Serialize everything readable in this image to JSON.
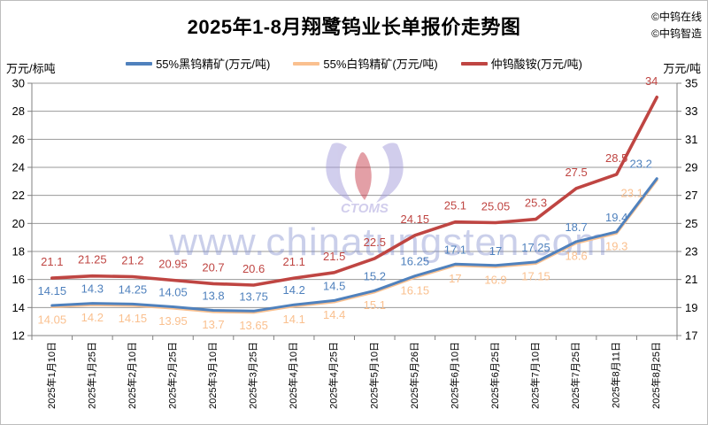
{
  "title": "2025年1-8月翔鹭钨业长单报价走势图",
  "credits": [
    "©中钨在线",
    "©中钨智造"
  ],
  "watermark": {
    "text": "www.chinatungsten.com",
    "logo_text": "CTOMS"
  },
  "chart_data": {
    "type": "line",
    "title": "2025年1-8月翔鹭钨业长单报价走势图",
    "categories": [
      "2025年1月10日",
      "2025年1月25日",
      "2025年2月10日",
      "2025年2月25日",
      "2025年3月10日",
      "2025年3月25日",
      "2025年4月10日",
      "2025年4月25日",
      "2025年5月10日",
      "2025年5月26日",
      "2025年6月10日",
      "2025年6月25日",
      "2025年7月10日",
      "2025年7月25日",
      "2025年8月11日",
      "2025年8月25日"
    ],
    "series": [
      {
        "name": "55%黑钨精矿(万元/吨)",
        "axis": "left",
        "color": "#4f81bd",
        "values": [
          14.15,
          14.3,
          14.25,
          14.05,
          13.8,
          13.75,
          14.2,
          14.5,
          15.2,
          16.25,
          17.1,
          17,
          17.25,
          18.7,
          19.4,
          23.2
        ]
      },
      {
        "name": "55%白钨精矿(万元/吨)",
        "axis": "left",
        "color": "#fac08f",
        "values": [
          14.05,
          14.2,
          14.15,
          13.95,
          13.7,
          13.65,
          14.1,
          14.4,
          15.1,
          16.15,
          17,
          16.9,
          17.15,
          18.6,
          19.3,
          23.1
        ]
      },
      {
        "name": "仲钨酸铵(万元/吨)",
        "axis": "right",
        "color": "#bf4542",
        "values": [
          21.1,
          21.25,
          21.2,
          20.95,
          20.7,
          20.6,
          21.1,
          21.5,
          22.5,
          24.15,
          25.1,
          25.05,
          25.3,
          27.5,
          28.5,
          34
        ]
      }
    ],
    "left_axis": {
      "label": "万元/标吨",
      "min": 12,
      "max": 30,
      "step": 2
    },
    "right_axis": {
      "label": "万元/吨",
      "min": 17,
      "max": 35,
      "step": 2
    },
    "grid": true,
    "legend_position": "top",
    "data_labels": true
  }
}
